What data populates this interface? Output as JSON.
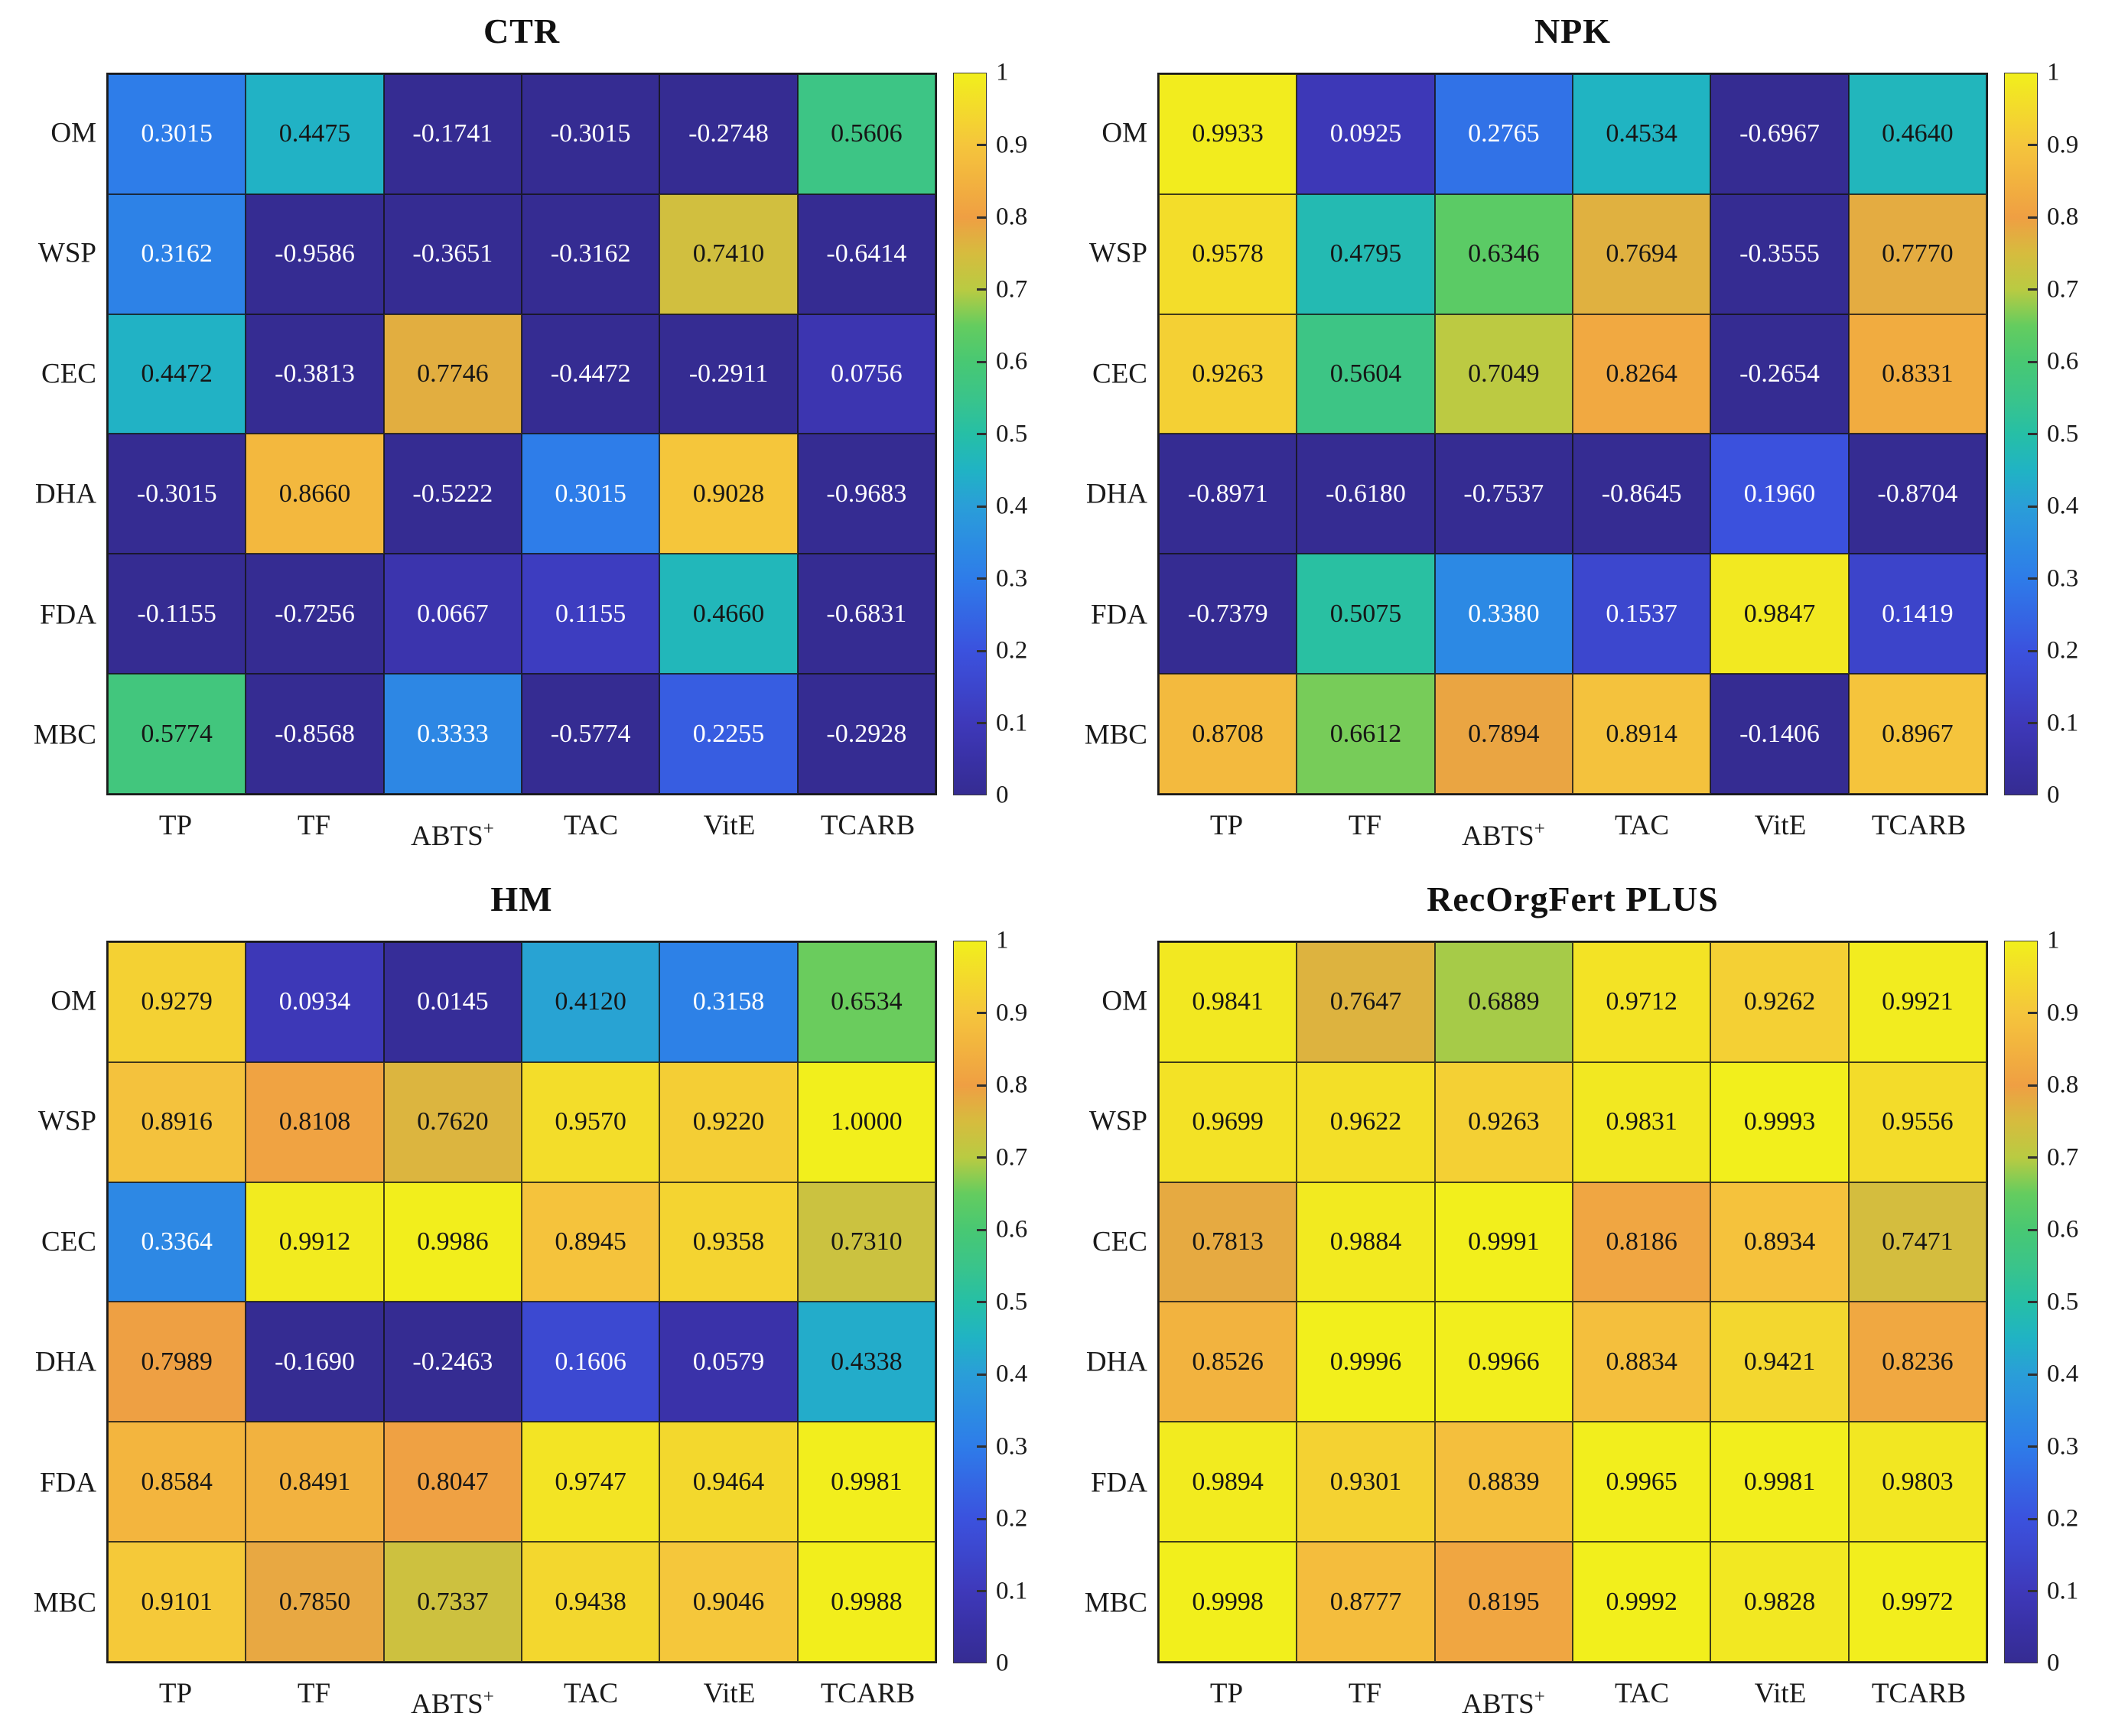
{
  "figure_title": "",
  "colorbar": {
    "min": 0,
    "max": 1,
    "tick_values": [
      0,
      0.1,
      0.2,
      0.3,
      0.4,
      0.5,
      0.6,
      0.7,
      0.8,
      0.9,
      1
    ],
    "tick_labels": [
      "0",
      "0.1",
      "0.2",
      "0.3",
      "0.4",
      "0.5",
      "0.6",
      "0.7",
      "0.8",
      "0.9",
      "1"
    ]
  },
  "colormap": {
    "name": "parula-like",
    "anchors": [
      {
        "t": 0.0,
        "c": "#352c92"
      },
      {
        "t": 0.05,
        "c": "#3931a6"
      },
      {
        "t": 0.1,
        "c": "#3e39ba"
      },
      {
        "t": 0.15,
        "c": "#3c46cd"
      },
      {
        "t": 0.2,
        "c": "#3b52de"
      },
      {
        "t": 0.25,
        "c": "#3467e4"
      },
      {
        "t": 0.3,
        "c": "#2e7ce9"
      },
      {
        "t": 0.35,
        "c": "#2c8de2"
      },
      {
        "t": 0.4,
        "c": "#2a9ed8"
      },
      {
        "t": 0.45,
        "c": "#20b3c4"
      },
      {
        "t": 0.5,
        "c": "#26bfa6"
      },
      {
        "t": 0.55,
        "c": "#3ac48a"
      },
      {
        "t": 0.6,
        "c": "#48c873"
      },
      {
        "t": 0.65,
        "c": "#64cc5f"
      },
      {
        "t": 0.7,
        "c": "#b9cb42"
      },
      {
        "t": 0.75,
        "c": "#d6bc3e"
      },
      {
        "t": 0.8,
        "c": "#ef9f43"
      },
      {
        "t": 0.85,
        "c": "#f2b23f"
      },
      {
        "t": 0.9,
        "c": "#f5c53c"
      },
      {
        "t": 0.95,
        "c": "#f3da2c"
      },
      {
        "t": 1.0,
        "c": "#f2ef1c"
      }
    ],
    "clamp_below": 0
  },
  "cell_text": {
    "decimals": 4,
    "black_threshold": 0.4,
    "dark_color": "#161616",
    "light_color": "#ffffff"
  },
  "chart_data": [
    {
      "type": "heatmap",
      "title": "CTR",
      "rows": [
        "OM",
        "WSP",
        "CEC",
        "DHA",
        "FDA",
        "MBC"
      ],
      "columns": [
        "TP",
        "TF",
        "ABTS+",
        "TAC",
        "VitE",
        "TCARB"
      ],
      "values": [
        [
          0.3015,
          0.4475,
          -0.1741,
          -0.3015,
          -0.2748,
          0.5606
        ],
        [
          0.3162,
          -0.9586,
          -0.3651,
          -0.3162,
          0.741,
          -0.6414
        ],
        [
          0.4472,
          -0.3813,
          0.7746,
          -0.4472,
          -0.2911,
          0.0756
        ],
        [
          -0.3015,
          0.866,
          -0.5222,
          0.3015,
          0.9028,
          -0.9683
        ],
        [
          -0.1155,
          -0.7256,
          0.0667,
          0.1155,
          0.466,
          -0.6831
        ],
        [
          0.5774,
          -0.8568,
          0.3333,
          -0.5774,
          0.2255,
          -0.2928
        ]
      ]
    },
    {
      "type": "heatmap",
      "title": "NPK",
      "rows": [
        "OM",
        "WSP",
        "CEC",
        "DHA",
        "FDA",
        "MBC"
      ],
      "columns": [
        "TP",
        "TF",
        "ABTS+",
        "TAC",
        "VitE",
        "TCARB"
      ],
      "values": [
        [
          0.9933,
          0.0925,
          0.2765,
          0.4534,
          -0.6967,
          0.464
        ],
        [
          0.9578,
          0.4795,
          0.6346,
          0.7694,
          -0.3555,
          0.777
        ],
        [
          0.9263,
          0.5604,
          0.7049,
          0.8264,
          -0.2654,
          0.8331
        ],
        [
          -0.8971,
          -0.618,
          -0.7537,
          -0.8645,
          0.196,
          -0.8704
        ],
        [
          -0.7379,
          0.5075,
          0.338,
          0.1537,
          0.9847,
          0.1419
        ],
        [
          0.8708,
          0.6612,
          0.7894,
          0.8914,
          -0.1406,
          0.8967
        ]
      ]
    },
    {
      "type": "heatmap",
      "title": "HM",
      "rows": [
        "OM",
        "WSP",
        "CEC",
        "DHA",
        "FDA",
        "MBC"
      ],
      "columns": [
        "TP",
        "TF",
        "ABTS+",
        "TAC",
        "VitE",
        "TCARB"
      ],
      "values": [
        [
          0.9279,
          0.0934,
          0.0145,
          0.412,
          0.3158,
          0.6534
        ],
        [
          0.8916,
          0.8108,
          0.762,
          0.957,
          0.922,
          1.0
        ],
        [
          0.3364,
          0.9912,
          0.9986,
          0.8945,
          0.9358,
          0.731
        ],
        [
          0.7989,
          -0.169,
          -0.2463,
          0.1606,
          0.0579,
          0.4338
        ],
        [
          0.8584,
          0.8491,
          0.8047,
          0.9747,
          0.9464,
          0.9981
        ],
        [
          0.9101,
          0.785,
          0.7337,
          0.9438,
          0.9046,
          0.9988
        ]
      ]
    },
    {
      "type": "heatmap",
      "title": "RecOrgFert PLUS",
      "rows": [
        "OM",
        "WSP",
        "CEC",
        "DHA",
        "FDA",
        "MBC"
      ],
      "columns": [
        "TP",
        "TF",
        "ABTS+",
        "TAC",
        "VitE",
        "TCARB"
      ],
      "values": [
        [
          0.9841,
          0.7647,
          0.6889,
          0.9712,
          0.9262,
          0.9921
        ],
        [
          0.9699,
          0.9622,
          0.9263,
          0.9831,
          0.9993,
          0.9556
        ],
        [
          0.7813,
          0.9884,
          0.9991,
          0.8186,
          0.8934,
          0.7471
        ],
        [
          0.8526,
          0.9996,
          0.9966,
          0.8834,
          0.9421,
          0.8236
        ],
        [
          0.9894,
          0.9301,
          0.8839,
          0.9965,
          0.9981,
          0.9803
        ],
        [
          0.9998,
          0.8777,
          0.8195,
          0.9992,
          0.9828,
          0.9972
        ]
      ]
    }
  ]
}
